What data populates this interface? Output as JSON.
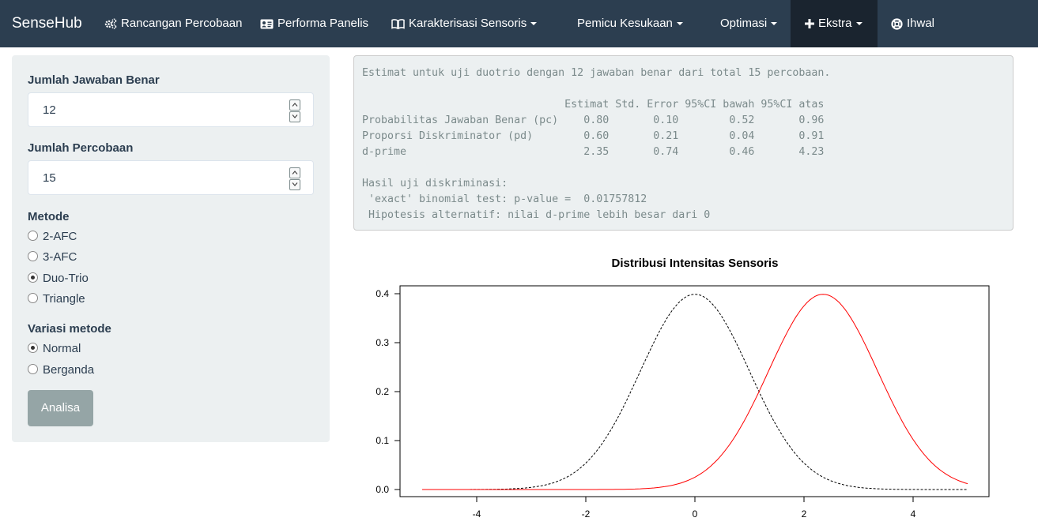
{
  "navbar": {
    "brand": "SenseHub",
    "items": [
      {
        "label": "Rancangan Percobaan",
        "icon": "cogs-icon",
        "dropdown": false
      },
      {
        "label": "Performa Panelis",
        "icon": "id-card-icon",
        "dropdown": false
      },
      {
        "label": "Karakterisasi Sensoris",
        "icon": "book-icon",
        "dropdown": true
      },
      {
        "label": "Pemicu Kesukaan",
        "icon": "",
        "dropdown": true
      },
      {
        "label": "Optimasi",
        "icon": "",
        "dropdown": true
      },
      {
        "label": "Ekstra",
        "icon": "plus-icon",
        "dropdown": true,
        "active": true
      },
      {
        "label": "Ihwal",
        "icon": "life-ring-icon",
        "dropdown": false
      }
    ]
  },
  "sidebar": {
    "correct_label": "Jumlah Jawaban Benar",
    "correct_value": "12",
    "trials_label": "Jumlah Percobaan",
    "trials_value": "15",
    "method_label": "Metode",
    "methods": [
      {
        "label": "2-AFC",
        "checked": false
      },
      {
        "label": "3-AFC",
        "checked": false
      },
      {
        "label": "Duo-Trio",
        "checked": true
      },
      {
        "label": "Triangle",
        "checked": false
      }
    ],
    "variation_label": "Variasi metode",
    "variations": [
      {
        "label": "Normal",
        "checked": true
      },
      {
        "label": "Berganda",
        "checked": false
      }
    ],
    "analyze_label": "Analisa"
  },
  "output": {
    "lines": [
      "Estimat untuk uji duotrio dengan 12 jawaban benar dari total 15 percobaan.",
      "",
      "                                Estimat Std. Error 95%CI bawah 95%CI atas",
      "Probabilitas Jawaban Benar (pc)    0.80       0.10        0.52       0.96",
      "Proporsi Diskriminator (pd)        0.60       0.21        0.04       0.91",
      "d-prime                            2.35       0.74        0.46       4.23",
      "",
      "Hasil uji diskriminasi:",
      " 'exact' binomial test: p-value =  0.01757812",
      " Hipotesis alternatif: nilai d-prime lebih besar dari 0"
    ]
  },
  "chart_data": {
    "type": "line",
    "title": "Distribusi Intensitas Sensoris",
    "xlabel": "",
    "ylabel": "",
    "xlim": [
      -5,
      5
    ],
    "ylim": [
      0,
      0.4
    ],
    "x_ticks": [
      "-4",
      "-2",
      "0",
      "2",
      "4"
    ],
    "y_ticks": [
      "0.0",
      "0.1",
      "0.2",
      "0.3",
      "0.4"
    ],
    "series": [
      {
        "distribution": "normal",
        "mean": 0,
        "sd": 1,
        "color": "#000000",
        "dash": "dashed"
      },
      {
        "distribution": "normal",
        "mean": 2.35,
        "sd": 1,
        "color": "#ff0000",
        "dash": "solid"
      }
    ]
  }
}
